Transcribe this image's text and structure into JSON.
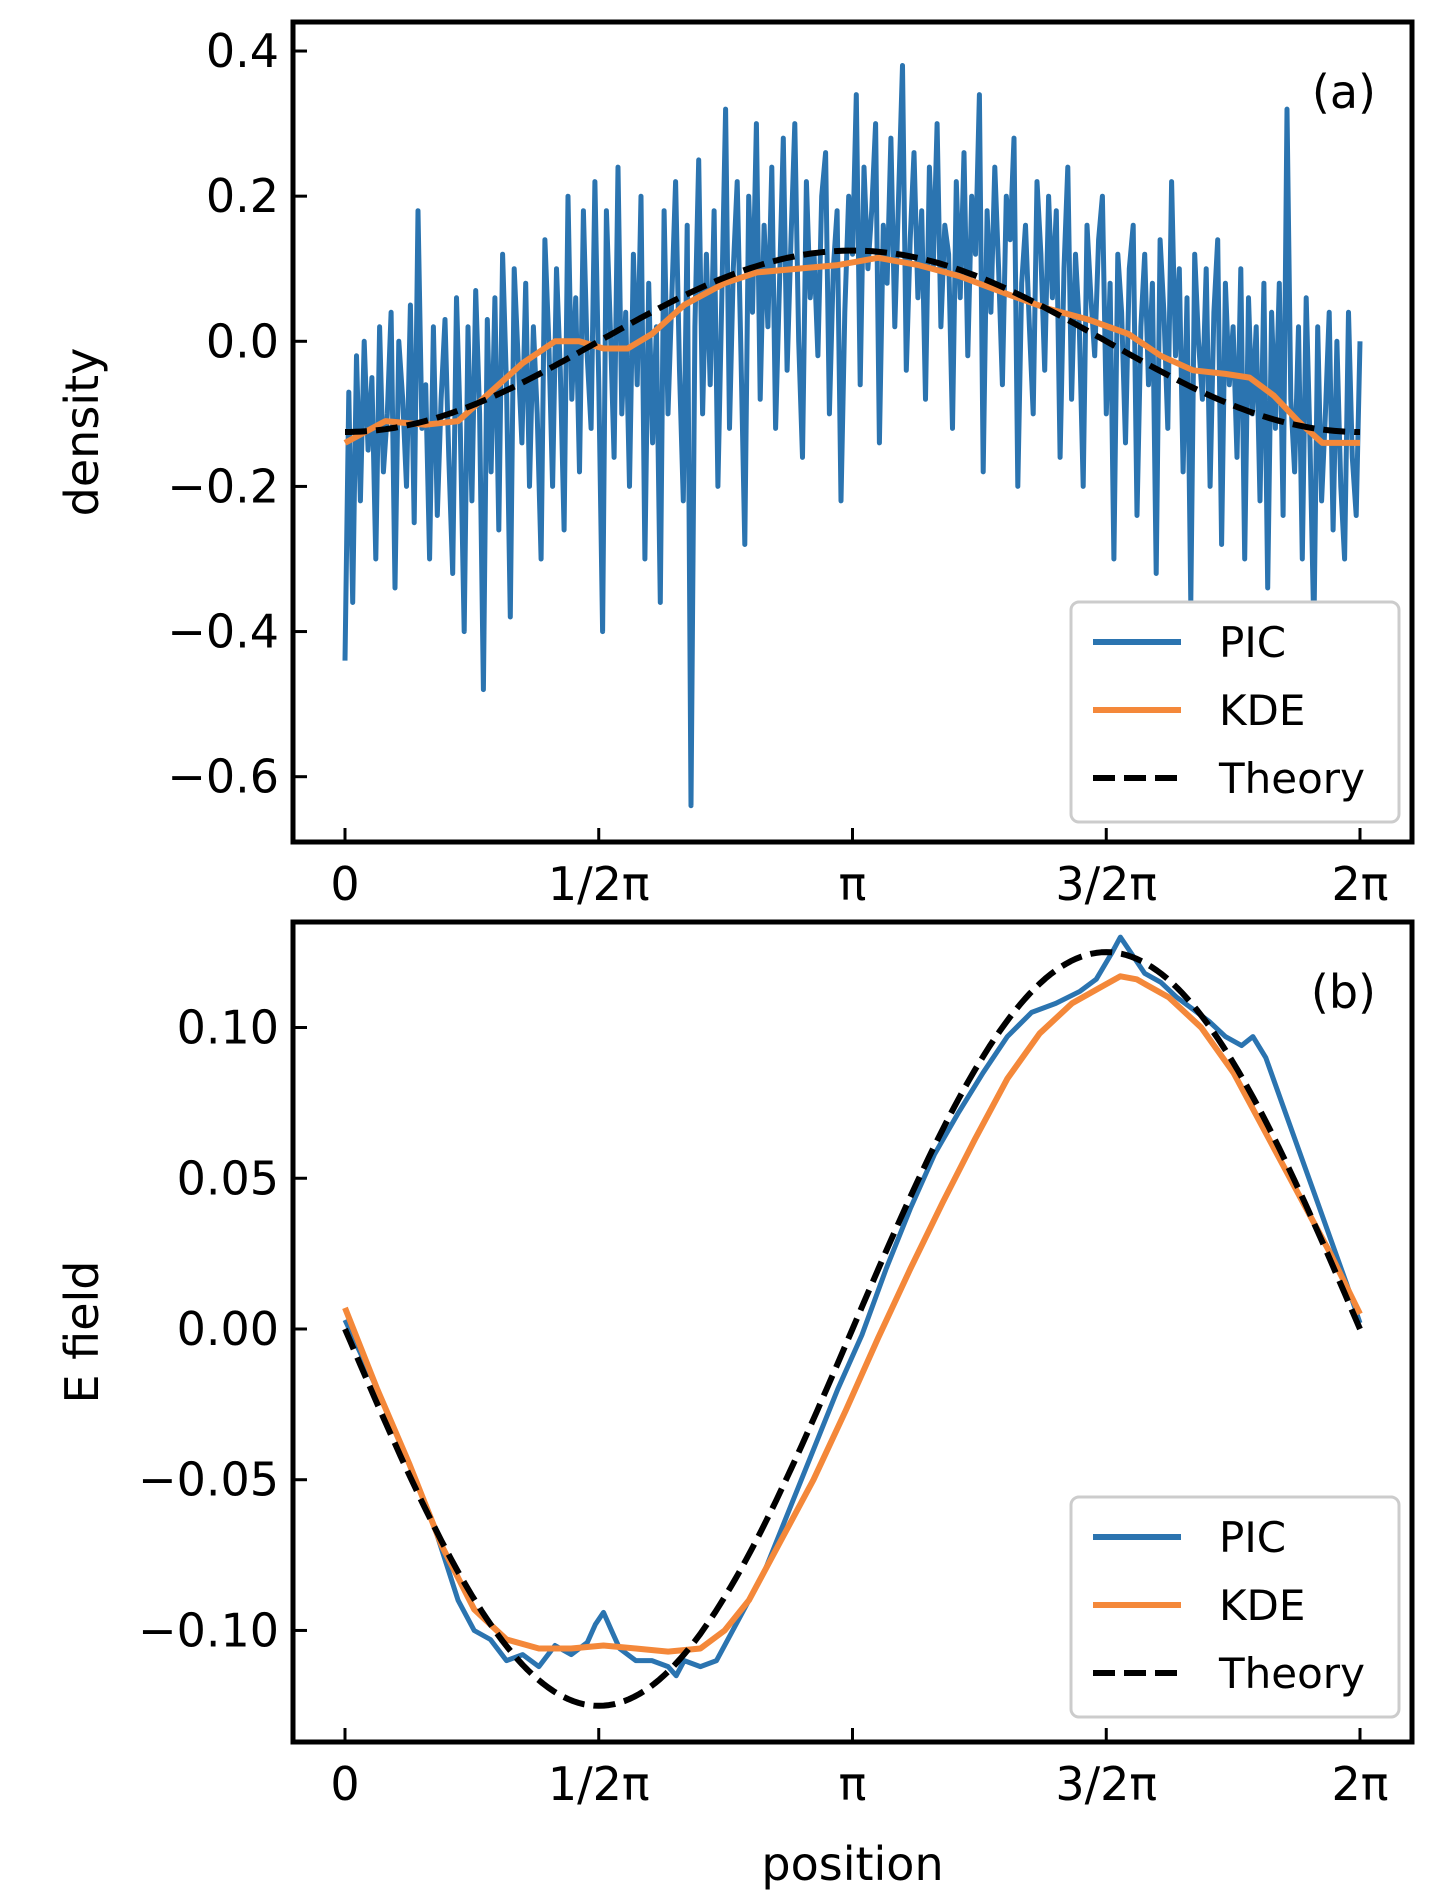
{
  "colors": {
    "pic": "#2b74b0",
    "kde": "#f4883a",
    "theory": "#000000"
  },
  "chart_data": [
    {
      "type": "line",
      "panel_label": "(a)",
      "title": "",
      "xlabel": "",
      "ylabel": "density",
      "xlim": [
        0,
        6.2832
      ],
      "ylim": [
        -0.69,
        0.44
      ],
      "x_ticks": [
        0,
        1.5708,
        3.1416,
        4.7124,
        6.2832
      ],
      "x_tick_labels": [
        "0",
        "1/2π",
        "π",
        "3/2π",
        "2π"
      ],
      "y_ticks": [
        0.4,
        0.2,
        0.0,
        -0.2,
        -0.4,
        -0.6
      ],
      "y_tick_labels": [
        "0.4",
        "0.2",
        "0.0",
        "−0.2",
        "−0.4",
        "−0.6"
      ],
      "grid": false,
      "legend_position": "bottom-right",
      "series": [
        {
          "name": "PIC",
          "x_range": [
            0,
            6.2832
          ],
          "values": [
            -0.44,
            -0.07,
            -0.36,
            -0.02,
            -0.22,
            0.0,
            -0.15,
            -0.05,
            -0.3,
            0.02,
            -0.18,
            -0.1,
            0.04,
            -0.34,
            0.0,
            -0.08,
            -0.2,
            0.05,
            -0.25,
            0.18,
            -0.12,
            -0.06,
            -0.3,
            0.02,
            -0.24,
            -0.08,
            0.03,
            -0.16,
            -0.32,
            0.06,
            -0.12,
            -0.4,
            0.02,
            -0.22,
            0.07,
            -0.1,
            -0.48,
            0.03,
            -0.18,
            0.06,
            -0.26,
            0.12,
            -0.06,
            -0.38,
            0.1,
            -0.02,
            -0.14,
            0.08,
            -0.2,
            0.02,
            -0.1,
            -0.3,
            0.14,
            0.0,
            -0.2,
            0.1,
            -0.04,
            -0.26,
            0.2,
            -0.08,
            0.06,
            -0.18,
            0.18,
            -0.02,
            -0.12,
            0.22,
            -0.06,
            -0.4,
            0.18,
            0.02,
            -0.16,
            0.24,
            -0.1,
            0.04,
            -0.2,
            0.12,
            -0.06,
            0.2,
            -0.3,
            0.08,
            -0.14,
            0.02,
            -0.36,
            0.18,
            -0.1,
            0.06,
            0.22,
            -0.04,
            -0.22,
            0.16,
            -0.64,
            0.02,
            0.25,
            -0.1,
            0.12,
            -0.06,
            0.18,
            -0.2,
            0.06,
            0.32,
            -0.12,
            0.1,
            0.22,
            -0.02,
            -0.28,
            0.2,
            0.04,
            0.3,
            -0.08,
            0.16,
            0.02,
            0.24,
            -0.12,
            0.08,
            0.28,
            -0.04,
            0.14,
            0.3,
            0.0,
            -0.16,
            0.22,
            0.06,
            0.12,
            -0.02,
            0.2,
            0.26,
            -0.1,
            0.1,
            0.18,
            -0.22,
            0.04,
            0.2,
            0.12,
            0.34,
            -0.06,
            0.24,
            0.1,
            0.18,
            0.3,
            -0.14,
            0.16,
            0.08,
            0.28,
            0.02,
            0.2,
            0.38,
            -0.04,
            0.14,
            0.26,
            0.06,
            0.18,
            -0.08,
            0.24,
            0.1,
            0.3,
            0.02,
            0.16,
            0.12,
            -0.12,
            0.22,
            0.06,
            0.26,
            -0.02,
            0.2,
            0.12,
            0.34,
            -0.18,
            0.18,
            0.04,
            0.24,
            0.1,
            -0.06,
            0.2,
            0.14,
            0.28,
            -0.2,
            0.08,
            0.16,
            0.02,
            -0.1,
            0.22,
            0.12,
            -0.04,
            0.2,
            0.06,
            0.18,
            -0.16,
            0.1,
            0.24,
            -0.08,
            0.12,
            0.02,
            -0.2,
            0.16,
            0.06,
            -0.02,
            0.14,
            0.2,
            -0.1,
            0.08,
            -0.3,
            0.12,
            0.04,
            -0.14,
            0.1,
            0.16,
            -0.24,
            0.02,
            0.12,
            -0.06,
            0.08,
            -0.32,
            0.14,
            0.04,
            -0.12,
            0.22,
            -0.02,
            0.1,
            -0.18,
            0.06,
            -0.36,
            0.12,
            0.0,
            -0.08,
            0.1,
            -0.2,
            0.04,
            0.14,
            -0.28,
            0.08,
            -0.06,
            0.02,
            -0.16,
            0.1,
            -0.3,
            0.06,
            -0.1,
            0.02,
            -0.22,
            0.08,
            -0.34,
            0.04,
            -0.12,
            0.08,
            -0.24,
            0.32,
            -0.08,
            -0.18,
            0.02,
            -0.3,
            0.06,
            -0.14,
            -0.4,
            0.02,
            -0.22,
            -0.1,
            0.04,
            -0.26,
            0.0,
            -0.2,
            -0.3,
            0.04,
            -0.16,
            -0.24,
            0.0
          ]
        },
        {
          "name": "KDE",
          "points": [
            [
              0,
              -0.14
            ],
            [
              0.25,
              -0.11
            ],
            [
              0.5,
              -0.115
            ],
            [
              0.7,
              -0.11
            ],
            [
              0.9,
              -0.07
            ],
            [
              1.1,
              -0.03
            ],
            [
              1.3,
              0.0
            ],
            [
              1.45,
              0.0
            ],
            [
              1.6,
              -0.01
            ],
            [
              1.75,
              -0.01
            ],
            [
              1.9,
              0.01
            ],
            [
              2.1,
              0.05
            ],
            [
              2.35,
              0.08
            ],
            [
              2.55,
              0.095
            ],
            [
              2.8,
              0.1
            ],
            [
              3.05,
              0.105
            ],
            [
              3.3,
              0.115
            ],
            [
              3.55,
              0.105
            ],
            [
              3.8,
              0.09
            ],
            [
              4.1,
              0.065
            ],
            [
              4.35,
              0.045
            ],
            [
              4.6,
              0.03
            ],
            [
              4.85,
              0.01
            ],
            [
              5.05,
              -0.02
            ],
            [
              5.25,
              -0.04
            ],
            [
              5.45,
              -0.045
            ],
            [
              5.6,
              -0.05
            ],
            [
              5.75,
              -0.075
            ],
            [
              5.9,
              -0.11
            ],
            [
              6.05,
              -0.14
            ],
            [
              6.2832,
              -0.14
            ]
          ]
        },
        {
          "name": "Theory",
          "function": "-0.125*cos(x)"
        }
      ]
    },
    {
      "type": "line",
      "panel_label": "(b)",
      "title": "",
      "xlabel": "position",
      "ylabel": "E field",
      "xlim": [
        0,
        6.2832
      ],
      "ylim": [
        -0.137,
        0.135
      ],
      "x_ticks": [
        0,
        1.5708,
        3.1416,
        4.7124,
        6.2832
      ],
      "x_tick_labels": [
        "0",
        "1/2π",
        "π",
        "3/2π",
        "2π"
      ],
      "y_ticks": [
        0.1,
        0.05,
        0.0,
        -0.05,
        -0.1
      ],
      "y_tick_labels": [
        "0.10",
        "0.05",
        "0.00",
        "−0.05",
        "−0.10"
      ],
      "grid": false,
      "legend_position": "bottom-right",
      "series": [
        {
          "name": "PIC",
          "points": [
            [
              0,
              0.003
            ],
            [
              0.2,
              -0.02
            ],
            [
              0.4,
              -0.045
            ],
            [
              0.55,
              -0.065
            ],
            [
              0.7,
              -0.09
            ],
            [
              0.8,
              -0.1
            ],
            [
              0.9,
              -0.103
            ],
            [
              1.0,
              -0.11
            ],
            [
              1.1,
              -0.108
            ],
            [
              1.2,
              -0.112
            ],
            [
              1.3,
              -0.105
            ],
            [
              1.4,
              -0.108
            ],
            [
              1.5,
              -0.104
            ],
            [
              1.55,
              -0.098
            ],
            [
              1.6,
              -0.094
            ],
            [
              1.65,
              -0.1
            ],
            [
              1.7,
              -0.106
            ],
            [
              1.8,
              -0.11
            ],
            [
              1.9,
              -0.11
            ],
            [
              2.0,
              -0.112
            ],
            [
              2.05,
              -0.115
            ],
            [
              2.1,
              -0.11
            ],
            [
              2.2,
              -0.112
            ],
            [
              2.3,
              -0.11
            ],
            [
              2.45,
              -0.095
            ],
            [
              2.6,
              -0.08
            ],
            [
              2.75,
              -0.06
            ],
            [
              2.9,
              -0.04
            ],
            [
              3.05,
              -0.02
            ],
            [
              3.2,
              -0.002
            ],
            [
              3.35,
              0.02
            ],
            [
              3.5,
              0.04
            ],
            [
              3.65,
              0.058
            ],
            [
              3.8,
              0.072
            ],
            [
              3.95,
              0.085
            ],
            [
              4.1,
              0.097
            ],
            [
              4.25,
              0.105
            ],
            [
              4.4,
              0.108
            ],
            [
              4.55,
              0.112
            ],
            [
              4.65,
              0.116
            ],
            [
              4.75,
              0.125
            ],
            [
              4.8,
              0.13
            ],
            [
              4.85,
              0.126
            ],
            [
              4.95,
              0.118
            ],
            [
              5.05,
              0.115
            ],
            [
              5.15,
              0.11
            ],
            [
              5.25,
              0.106
            ],
            [
              5.35,
              0.102
            ],
            [
              5.45,
              0.097
            ],
            [
              5.55,
              0.094
            ],
            [
              5.62,
              0.097
            ],
            [
              5.7,
              0.09
            ],
            [
              5.8,
              0.075
            ],
            [
              5.9,
              0.06
            ],
            [
              6.0,
              0.045
            ],
            [
              6.1,
              0.03
            ],
            [
              6.2,
              0.015
            ],
            [
              6.2832,
              0.002
            ]
          ]
        },
        {
          "name": "KDE",
          "points": [
            [
              0,
              0.007
            ],
            [
              0.2,
              -0.02
            ],
            [
              0.4,
              -0.045
            ],
            [
              0.6,
              -0.072
            ],
            [
              0.8,
              -0.093
            ],
            [
              1.0,
              -0.103
            ],
            [
              1.2,
              -0.106
            ],
            [
              1.4,
              -0.106
            ],
            [
              1.6,
              -0.105
            ],
            [
              1.8,
              -0.106
            ],
            [
              2.0,
              -0.107
            ],
            [
              2.2,
              -0.106
            ],
            [
              2.35,
              -0.1
            ],
            [
              2.5,
              -0.09
            ],
            [
              2.7,
              -0.07
            ],
            [
              2.9,
              -0.05
            ],
            [
              3.1,
              -0.027
            ],
            [
              3.3,
              -0.003
            ],
            [
              3.5,
              0.02
            ],
            [
              3.7,
              0.042
            ],
            [
              3.9,
              0.063
            ],
            [
              4.1,
              0.083
            ],
            [
              4.3,
              0.098
            ],
            [
              4.5,
              0.108
            ],
            [
              4.7,
              0.114
            ],
            [
              4.8,
              0.117
            ],
            [
              4.9,
              0.116
            ],
            [
              5.1,
              0.11
            ],
            [
              5.3,
              0.1
            ],
            [
              5.5,
              0.085
            ],
            [
              5.7,
              0.065
            ],
            [
              5.9,
              0.045
            ],
            [
              6.1,
              0.025
            ],
            [
              6.2832,
              0.005
            ]
          ]
        },
        {
          "name": "Theory",
          "function": "-0.125*sin(x)"
        }
      ]
    }
  ]
}
